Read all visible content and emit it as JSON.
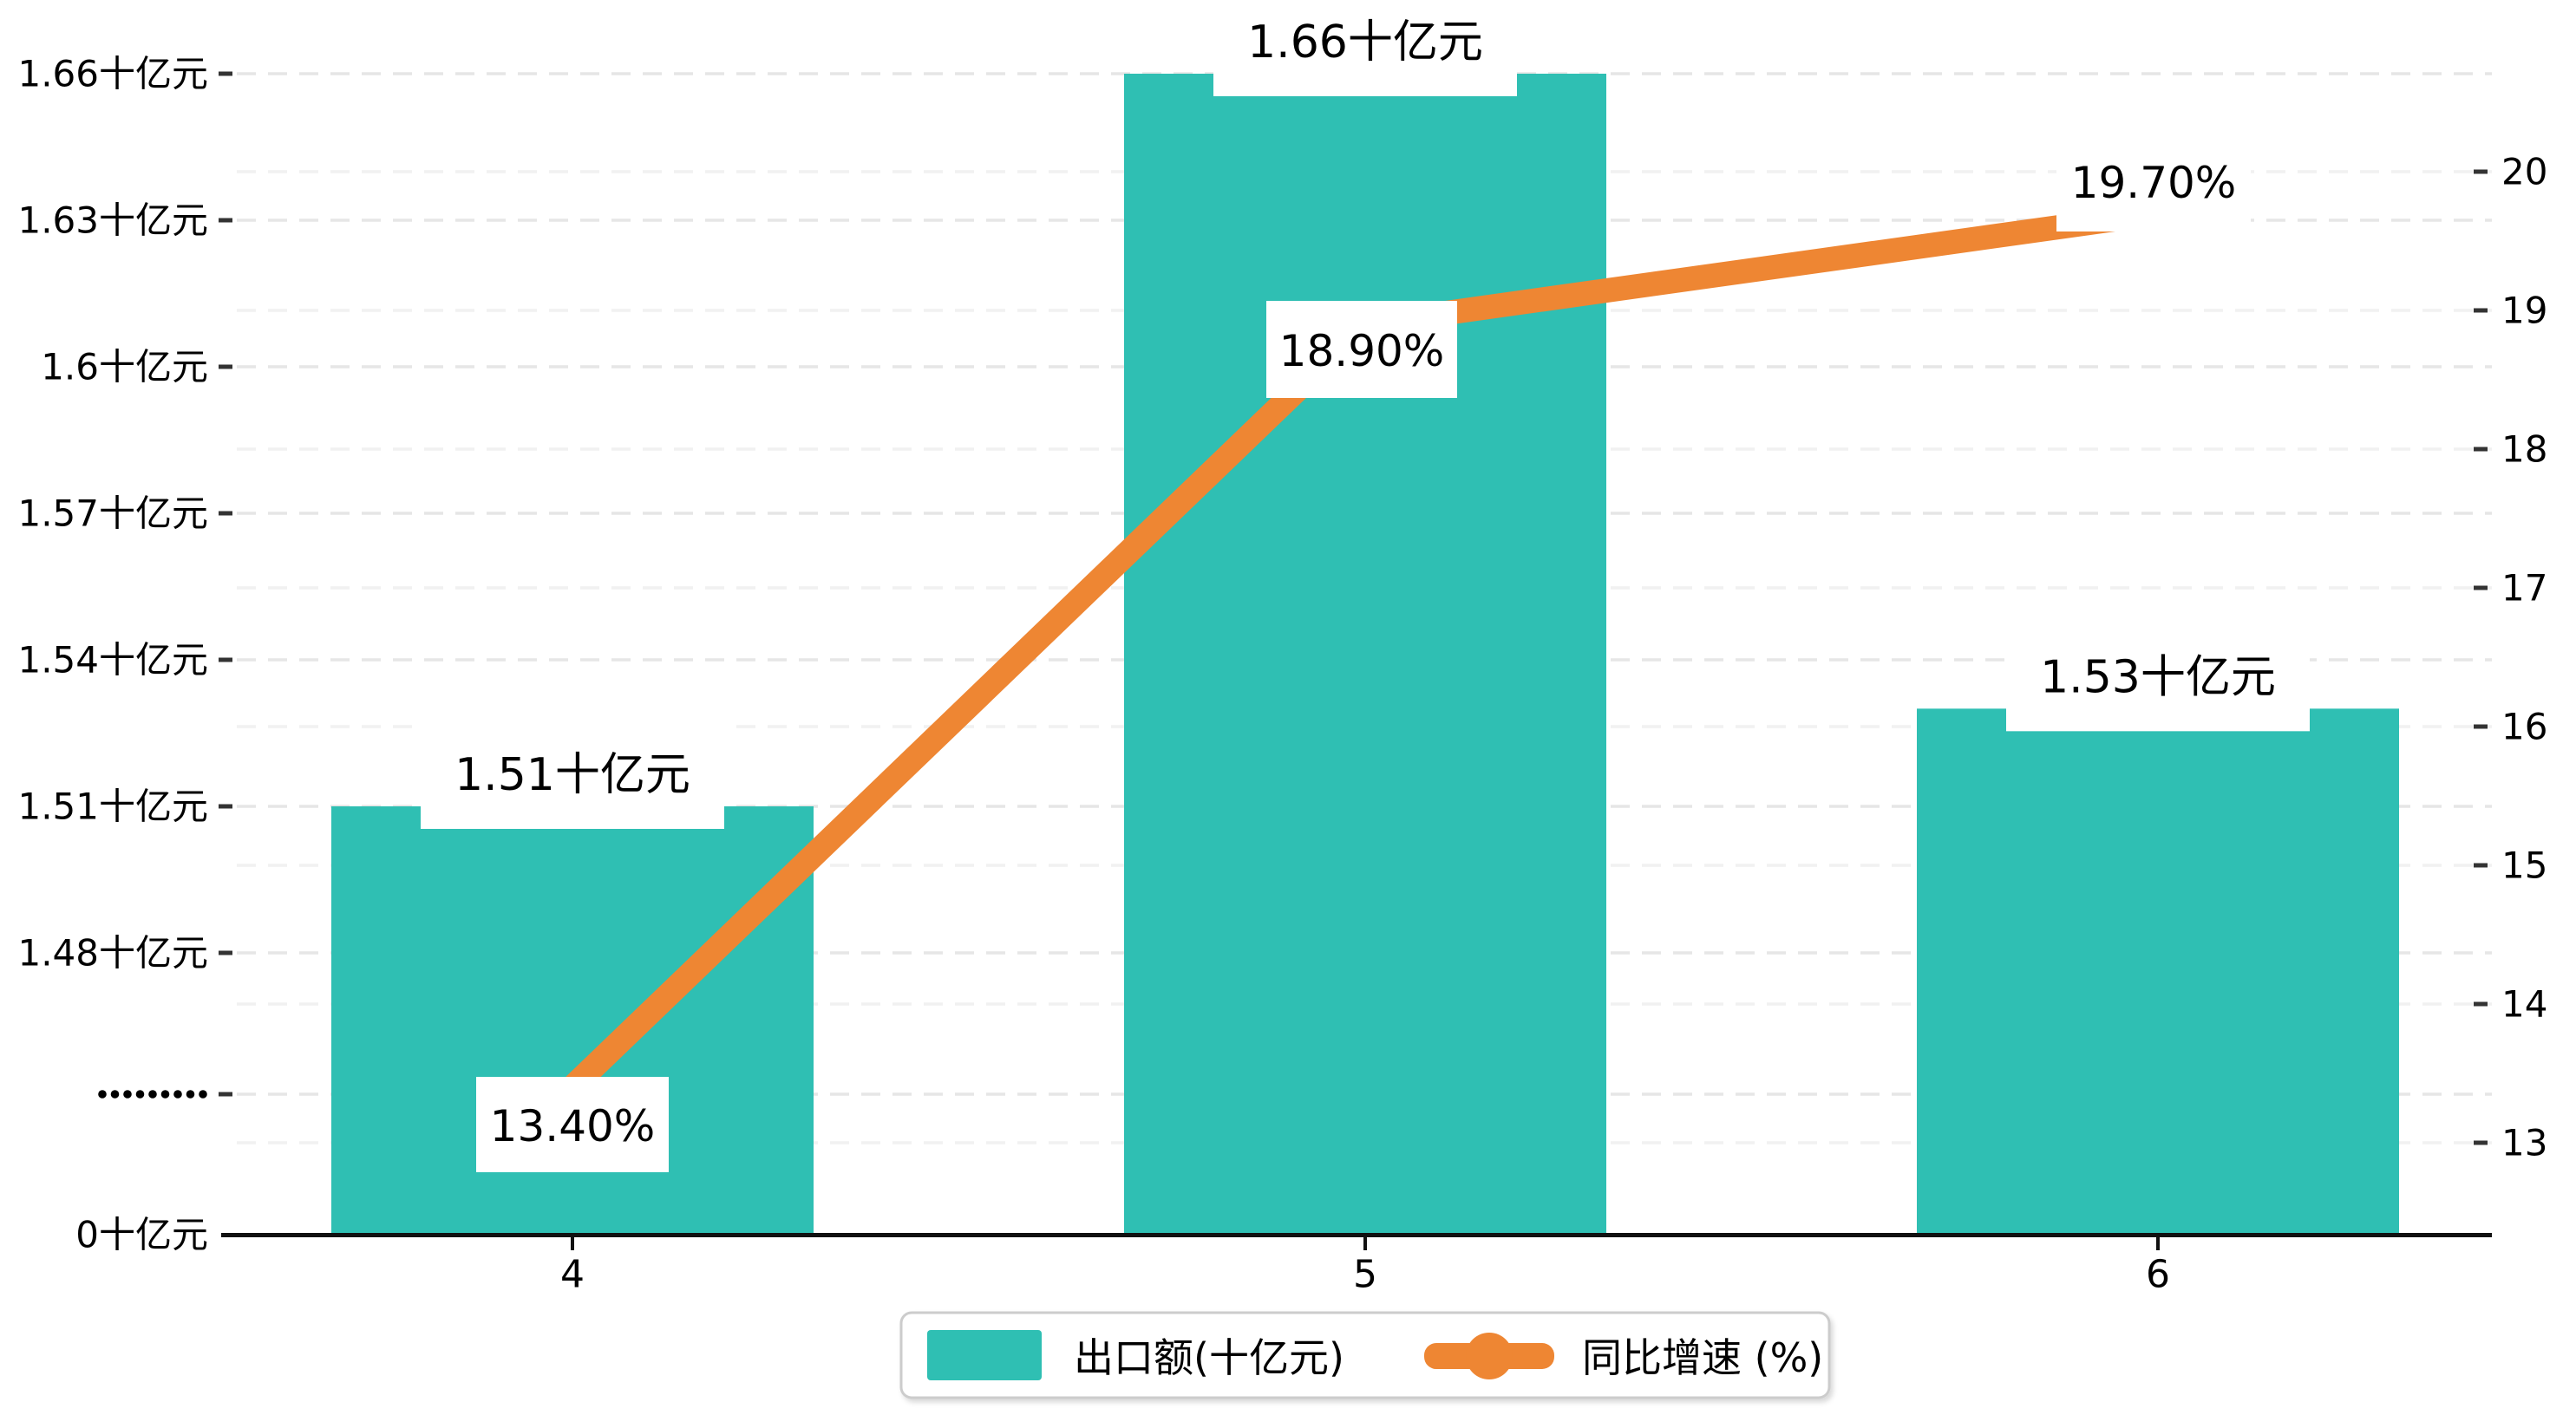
{
  "chart_data": {
    "type": "bar",
    "subtype": "bar-line-dual-axis",
    "background": "#ffffff",
    "grid": "dashed",
    "categories": [
      "4",
      "5",
      "6"
    ],
    "series": [
      {
        "name": "出口额(十亿元)",
        "type": "bar",
        "yaxis": "left",
        "color": "#2fbfb3",
        "values": [
          1.51,
          1.66,
          1.53
        ],
        "data_labels": [
          "1.51十亿元",
          "1.66十亿元",
          "1.53十亿元"
        ]
      },
      {
        "name": "同比增速 (%)",
        "type": "line",
        "yaxis": "right",
        "color": "#ee8633",
        "values": [
          13.4,
          18.9,
          19.7
        ],
        "data_labels": [
          "13.40%",
          "18.90%",
          "19.70%"
        ]
      }
    ],
    "left_axis": {
      "unit": "十亿元",
      "tick_labels": [
        "1.66十亿元",
        "1.63十亿元",
        "1.6十亿元",
        "1.57十亿元",
        "1.54十亿元",
        "1.51十亿元",
        "1.48十亿元",
        "·········",
        "0十亿元"
      ],
      "tick_values": [
        1.66,
        1.63,
        1.6,
        1.57,
        1.54,
        1.51,
        1.48,
        null,
        0
      ],
      "has_break": true,
      "break_label": "·········"
    },
    "right_axis": {
      "tick_labels": [
        "20",
        "19",
        "18",
        "17",
        "16",
        "15",
        "14",
        "13"
      ],
      "min": 13,
      "max": 20
    },
    "x_axis": {
      "tick_labels": [
        "4",
        "5",
        "6"
      ]
    },
    "legend": {
      "position": "bottom-center",
      "items": [
        {
          "label": "出口额(十亿元)",
          "marker": "square",
          "color": "#2fbfb3"
        },
        {
          "label": "同比增速 (%)",
          "marker": "line-dot",
          "color": "#ee8633"
        }
      ]
    }
  },
  "colors": {
    "bar": "#2fbfb3",
    "line": "#ee8633",
    "grid_left": "#e6e6e6",
    "grid_right": "#f1f1f1",
    "axis_line": "#111111",
    "tick": "#333333",
    "text": "#000000",
    "label_bg": "#ffffff",
    "legend_border": "#cccccc"
  }
}
